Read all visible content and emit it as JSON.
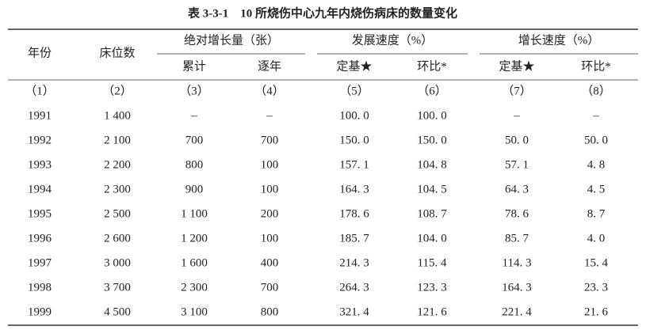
{
  "title": "表 3-3-1　10 所烧伤中心九年内烧伤病床的数量变化",
  "header": {
    "year": "年份",
    "beds": "床位数",
    "groups": [
      "绝对增长量（张）",
      "发展速度（%）",
      "增长速度（%）"
    ],
    "sub": [
      "累计",
      "逐年",
      "定基★",
      "环比*",
      "定基★",
      "环比*"
    ],
    "index": [
      "（1）",
      "（2）",
      "（3）",
      "（4）",
      "（5）",
      "（6）",
      "（7）",
      "（8）"
    ]
  },
  "table": {
    "rows": [
      [
        "1991",
        "1 400",
        "–",
        "–",
        "100. 0",
        "100. 0",
        "–",
        "–"
      ],
      [
        "1992",
        "2 100",
        "700",
        "700",
        "150. 0",
        "150. 0",
        "50. 0",
        "50. 0"
      ],
      [
        "1993",
        "2 200",
        "800",
        "100",
        "157. 1",
        "104. 8",
        "57. 1",
        "4. 8"
      ],
      [
        "1994",
        "2 300",
        "900",
        "100",
        "164. 3",
        "104. 5",
        "64. 3",
        "4. 5"
      ],
      [
        "1995",
        "2 500",
        "1 100",
        "200",
        "178. 6",
        "108. 7",
        "78. 6",
        "8. 7"
      ],
      [
        "1996",
        "2 600",
        "1 200",
        "100",
        "185. 7",
        "104. 0",
        "85. 7",
        "4. 0"
      ],
      [
        "1997",
        "3 000",
        "1 600",
        "400",
        "214. 3",
        "115. 4",
        "114. 3",
        "15. 4"
      ],
      [
        "1998",
        "3 700",
        "2 300",
        "700",
        "264. 3",
        "123. 3",
        "164. 3",
        "23. 3"
      ],
      [
        "1999",
        "4 500",
        "3 100",
        "800",
        "321. 4",
        "121. 6",
        "221. 4",
        "21. 6"
      ]
    ]
  }
}
